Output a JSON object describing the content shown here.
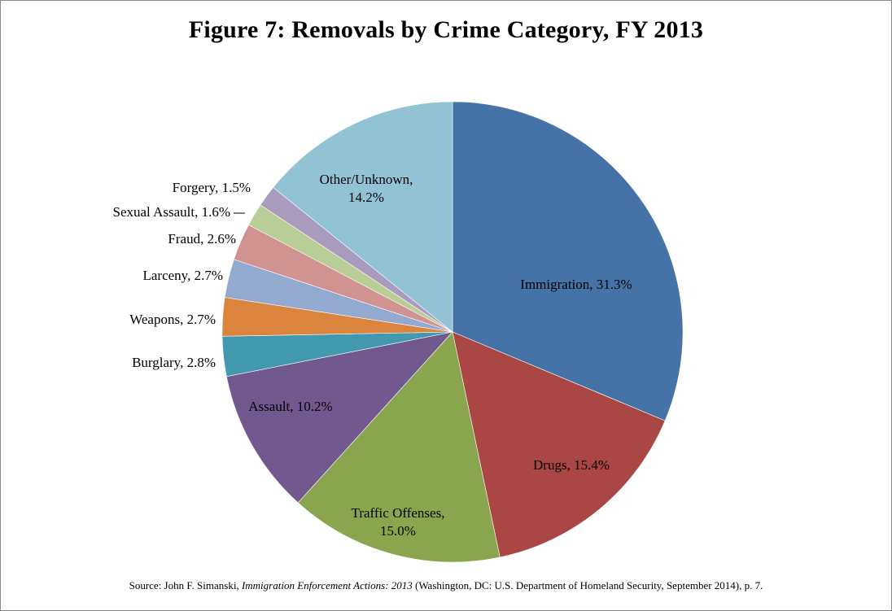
{
  "title": "Figure 7: Removals by Crime Category, FY 2013",
  "source": {
    "prefix": "Source: John F. Simanski,",
    "italic": "Immigration Enforcement Actions: 2013",
    "suffix": "(Washington, DC: U.S. Department of Homeland Security, September 2014), p. 7."
  },
  "chart_data": {
    "type": "pie",
    "title": "Figure 7: Removals by Crime Category, FY 2013",
    "unit": "%",
    "slices": [
      {
        "label": "Immigration",
        "value": 31.3,
        "color": "#4572A7"
      },
      {
        "label": "Drugs",
        "value": 15.4,
        "color": "#AA4643"
      },
      {
        "label": "Traffic Offenses",
        "value": 15.0,
        "color": "#89A54E"
      },
      {
        "label": "Assault",
        "value": 10.2,
        "color": "#71588F"
      },
      {
        "label": "Burglary",
        "value": 2.8,
        "color": "#4198AF"
      },
      {
        "label": "Weapons",
        "value": 2.7,
        "color": "#DB843D"
      },
      {
        "label": "Larceny",
        "value": 2.7,
        "color": "#93A9CF"
      },
      {
        "label": "Fraud",
        "value": 2.6,
        "color": "#D19392"
      },
      {
        "label": "Sexual Assault",
        "value": 1.6,
        "color": "#B9CD96"
      },
      {
        "label": "Forgery",
        "value": 1.5,
        "color": "#A99BBD"
      },
      {
        "label": "Other/Unknown",
        "value": 14.2,
        "color": "#92C3D4"
      }
    ],
    "data_labels": [
      "Immigration, 31.3%",
      "Drugs, 15.4%",
      [
        "Traffic Offenses,",
        "15.0%"
      ],
      "Assault, 10.2%",
      "Burglary, 2.8%",
      "Weapons, 2.7%",
      "Larceny, 2.7%",
      "Fraud, 2.6%",
      "Sexual Assault, 1.6%",
      "Forgery, 1.5%",
      [
        "Other/Unknown,",
        "14.2%"
      ]
    ]
  }
}
